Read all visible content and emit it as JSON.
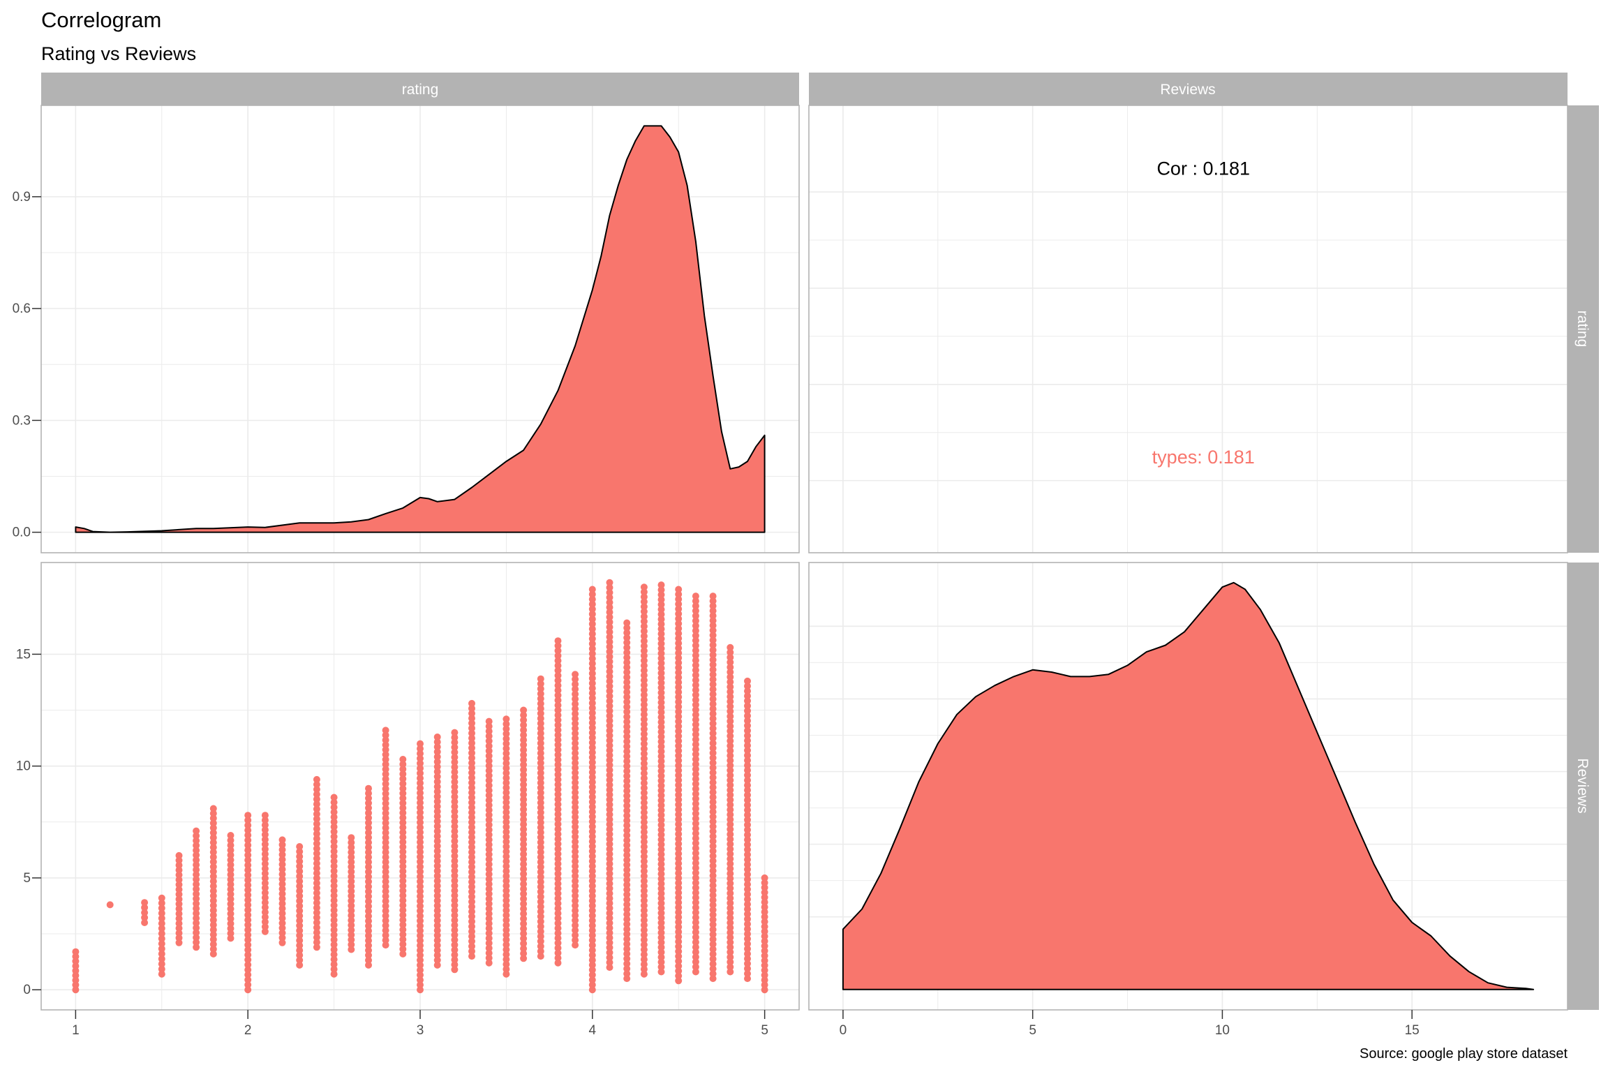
{
  "title": "Correlogram",
  "subtitle": "Rating vs Reviews",
  "caption": "Source: google play store dataset",
  "colors": {
    "fill": "#F8766D",
    "strip": "#b3b3b3",
    "grid": "#ebebeb",
    "panel_border": "#b3b3b3",
    "text": "#000000",
    "tick_text": "#4d4d4d"
  },
  "strips": {
    "top": [
      "rating",
      "Reviews"
    ],
    "right": [
      "rating",
      "Reviews"
    ]
  },
  "chart_data": [
    {
      "panel": "rating-density",
      "type": "area",
      "x": [
        1.0,
        1.05,
        1.1,
        1.2,
        1.3,
        1.5,
        1.7,
        1.8,
        2.0,
        2.1,
        2.3,
        2.5,
        2.6,
        2.7,
        2.8,
        2.9,
        3.0,
        3.05,
        3.1,
        3.2,
        3.3,
        3.4,
        3.5,
        3.6,
        3.7,
        3.8,
        3.9,
        4.0,
        4.05,
        4.1,
        4.15,
        4.2,
        4.25,
        4.3,
        4.35,
        4.4,
        4.45,
        4.5,
        4.55,
        4.6,
        4.65,
        4.7,
        4.75,
        4.8,
        4.85,
        4.9,
        4.95,
        5.0
      ],
      "y": [
        0.014,
        0.01,
        0.002,
        0.0,
        0.001,
        0.004,
        0.01,
        0.01,
        0.014,
        0.013,
        0.025,
        0.025,
        0.028,
        0.034,
        0.05,
        0.065,
        0.093,
        0.09,
        0.082,
        0.088,
        0.12,
        0.155,
        0.19,
        0.22,
        0.29,
        0.38,
        0.5,
        0.65,
        0.74,
        0.85,
        0.93,
        1.0,
        1.05,
        1.09,
        1.09,
        1.09,
        1.06,
        1.02,
        0.93,
        0.78,
        0.58,
        0.42,
        0.27,
        0.17,
        0.175,
        0.19,
        0.23,
        0.26
      ],
      "x_ticks": [
        1,
        2,
        3,
        4,
        5
      ],
      "y_ticks": [
        0.0,
        0.3,
        0.6,
        0.9
      ],
      "y_tick_labels": [
        "0.0",
        "0.3",
        "0.6",
        "0.9"
      ],
      "xlim": [
        0.8,
        5.2
      ],
      "ylim": [
        -0.055,
        1.145
      ]
    },
    {
      "panel": "correlation",
      "type": "table",
      "labels": [
        {
          "text": "Cor : 0.181",
          "x": 9.5,
          "y": 0.85,
          "color": "#000000"
        },
        {
          "text": "types: 0.181",
          "x": 9.5,
          "y": 0.25,
          "color": "#F8766D"
        }
      ],
      "x_ticks": [
        0,
        5,
        10,
        15
      ],
      "y_ticks": [
        0.2,
        0.4,
        0.6,
        0.8
      ],
      "xlim": [
        -0.9,
        19.1
      ],
      "ylim": [
        0.05,
        0.98
      ]
    },
    {
      "panel": "rating-vs-reviews",
      "type": "scatter",
      "x_ticks": [
        1,
        2,
        3,
        4,
        5
      ],
      "y_ticks": [
        0,
        5,
        10,
        15
      ],
      "xlim": [
        0.8,
        5.2
      ],
      "ylim": [
        -0.9,
        19.1
      ],
      "columns": [
        {
          "x": 1.0,
          "y_min": 0.0,
          "y_max": 1.7
        },
        {
          "x": 1.2,
          "y_min": 3.8,
          "y_max": 3.8
        },
        {
          "x": 1.4,
          "y_min": 3.0,
          "y_max": 3.9
        },
        {
          "x": 1.5,
          "y_min": 0.7,
          "y_max": 4.1
        },
        {
          "x": 1.6,
          "y_min": 2.1,
          "y_max": 6.0
        },
        {
          "x": 1.7,
          "y_min": 1.9,
          "y_max": 7.1
        },
        {
          "x": 1.8,
          "y_min": 1.6,
          "y_max": 8.1
        },
        {
          "x": 1.9,
          "y_min": 2.3,
          "y_max": 6.9
        },
        {
          "x": 2.0,
          "y_min": 0.0,
          "y_max": 7.8
        },
        {
          "x": 2.1,
          "y_min": 2.6,
          "y_max": 7.8
        },
        {
          "x": 2.2,
          "y_min": 2.1,
          "y_max": 6.7
        },
        {
          "x": 2.3,
          "y_min": 1.1,
          "y_max": 6.4
        },
        {
          "x": 2.4,
          "y_min": 1.9,
          "y_max": 9.4
        },
        {
          "x": 2.5,
          "y_min": 0.7,
          "y_max": 8.6
        },
        {
          "x": 2.6,
          "y_min": 1.8,
          "y_max": 6.8
        },
        {
          "x": 2.7,
          "y_min": 1.1,
          "y_max": 9.0
        },
        {
          "x": 2.8,
          "y_min": 2.0,
          "y_max": 11.6
        },
        {
          "x": 2.9,
          "y_min": 1.6,
          "y_max": 10.3
        },
        {
          "x": 3.0,
          "y_min": 0.0,
          "y_max": 11.0
        },
        {
          "x": 3.1,
          "y_min": 1.1,
          "y_max": 11.3
        },
        {
          "x": 3.2,
          "y_min": 0.9,
          "y_max": 11.5
        },
        {
          "x": 3.3,
          "y_min": 1.5,
          "y_max": 12.8
        },
        {
          "x": 3.4,
          "y_min": 1.2,
          "y_max": 12.0
        },
        {
          "x": 3.5,
          "y_min": 0.7,
          "y_max": 12.1
        },
        {
          "x": 3.6,
          "y_min": 1.4,
          "y_max": 12.5
        },
        {
          "x": 3.7,
          "y_min": 1.5,
          "y_max": 13.9
        },
        {
          "x": 3.8,
          "y_min": 1.2,
          "y_max": 15.6
        },
        {
          "x": 3.9,
          "y_min": 2.0,
          "y_max": 14.1
        },
        {
          "x": 4.0,
          "y_min": 0.0,
          "y_max": 17.9
        },
        {
          "x": 4.1,
          "y_min": 1.0,
          "y_max": 18.2
        },
        {
          "x": 4.2,
          "y_min": 0.5,
          "y_max": 16.4
        },
        {
          "x": 4.3,
          "y_min": 0.7,
          "y_max": 18.0
        },
        {
          "x": 4.4,
          "y_min": 0.8,
          "y_max": 18.1
        },
        {
          "x": 4.5,
          "y_min": 0.4,
          "y_max": 17.9
        },
        {
          "x": 4.6,
          "y_min": 0.8,
          "y_max": 17.6
        },
        {
          "x": 4.7,
          "y_min": 0.5,
          "y_max": 17.6
        },
        {
          "x": 4.8,
          "y_min": 0.8,
          "y_max": 15.3
        },
        {
          "x": 4.9,
          "y_min": 0.5,
          "y_max": 13.8
        },
        {
          "x": 5.0,
          "y_min": 0.0,
          "y_max": 5.0
        }
      ]
    },
    {
      "panel": "reviews-density",
      "type": "area",
      "x": [
        0.0,
        0.0,
        0.5,
        1.0,
        1.5,
        2.0,
        2.5,
        3.0,
        3.5,
        4.0,
        4.5,
        5.0,
        5.5,
        6.0,
        6.5,
        7.0,
        7.5,
        8.0,
        8.5,
        9.0,
        9.5,
        10.0,
        10.3,
        10.6,
        11.0,
        11.5,
        12.0,
        12.5,
        13.0,
        13.5,
        14.0,
        14.5,
        15.0,
        15.5,
        16.0,
        16.5,
        17.0,
        17.5,
        18.0,
        18.2
      ],
      "y": [
        0.0,
        0.027,
        0.036,
        0.052,
        0.072,
        0.093,
        0.11,
        0.123,
        0.131,
        0.136,
        0.14,
        0.143,
        0.142,
        0.14,
        0.14,
        0.141,
        0.145,
        0.151,
        0.154,
        0.16,
        0.17,
        0.18,
        0.182,
        0.179,
        0.17,
        0.155,
        0.135,
        0.115,
        0.095,
        0.075,
        0.056,
        0.04,
        0.03,
        0.024,
        0.015,
        0.008,
        0.003,
        0.001,
        0.0005,
        0.0
      ],
      "x_ticks": [
        0,
        5,
        10,
        15
      ],
      "xlim": [
        -0.9,
        19.1
      ],
      "ylim": [
        -0.0091,
        0.191
      ]
    }
  ]
}
